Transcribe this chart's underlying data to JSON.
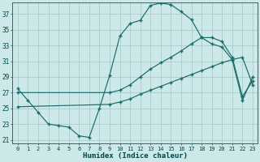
{
  "xlabel": "Humidex (Indice chaleur)",
  "background_color": "#cce8e8",
  "grid_color": "#aacccc",
  "line_color": "#1a6b6b",
  "xlim": [
    -0.5,
    23.5
  ],
  "ylim": [
    20.5,
    38.5
  ],
  "xticks": [
    0,
    1,
    2,
    3,
    4,
    5,
    6,
    7,
    8,
    9,
    10,
    11,
    12,
    13,
    14,
    15,
    16,
    17,
    18,
    19,
    20,
    21,
    22,
    23
  ],
  "yticks": [
    21,
    23,
    25,
    27,
    29,
    31,
    33,
    35,
    37
  ],
  "curve1_x": [
    0,
    1,
    2,
    3,
    4,
    5,
    6,
    7,
    8,
    9,
    10,
    11,
    12,
    13,
    14,
    15,
    16,
    17,
    18,
    19,
    20,
    21,
    22,
    23
  ],
  "curve1_y": [
    27.5,
    26.0,
    24.5,
    23.0,
    22.8,
    22.6,
    21.5,
    21.3,
    25.0,
    29.2,
    34.2,
    35.8,
    36.2,
    38.1,
    38.4,
    38.2,
    37.3,
    36.3,
    34.0,
    33.2,
    32.8,
    31.2,
    26.0,
    29.0
  ],
  "curve2_x": [
    0,
    9,
    10,
    11,
    12,
    13,
    14,
    15,
    16,
    17,
    18,
    19,
    20,
    21,
    22,
    23
  ],
  "curve2_y": [
    27.0,
    27.0,
    27.3,
    28.0,
    29.0,
    30.0,
    30.8,
    31.5,
    32.3,
    33.2,
    34.0,
    34.0,
    33.5,
    31.5,
    26.5,
    28.5
  ],
  "curve3_x": [
    0,
    9,
    10,
    11,
    12,
    13,
    14,
    15,
    16,
    17,
    18,
    19,
    20,
    21,
    22,
    23
  ],
  "curve3_y": [
    25.2,
    25.5,
    25.8,
    26.2,
    26.8,
    27.3,
    27.8,
    28.3,
    28.8,
    29.3,
    29.8,
    30.3,
    30.8,
    31.2,
    31.5,
    28.0
  ]
}
